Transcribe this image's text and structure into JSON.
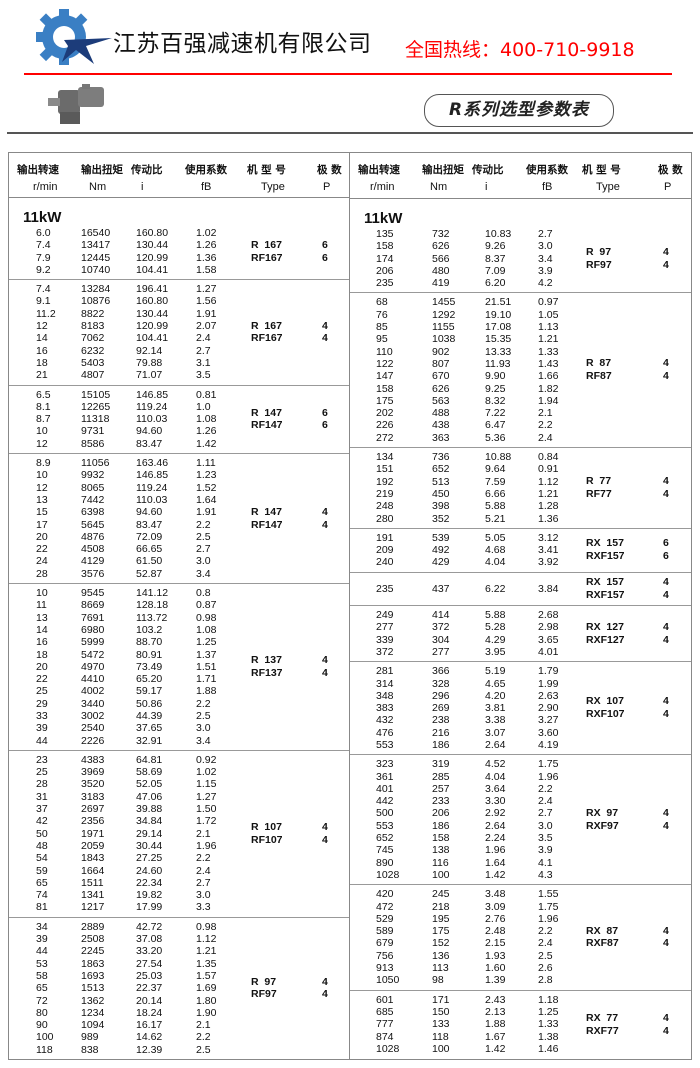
{
  "header": {
    "company": "江苏百强减速机有限公司",
    "hotline": "全国热线：400-710-9918",
    "series_title": "R系列选型参数表",
    "brand_colors": {
      "accent": "#ff0000",
      "logo_blue": "#3a7fc4",
      "logo_navy": "#1c3c7a"
    }
  },
  "columns": {
    "cn": [
      "输出转速",
      "输出扭矩",
      "传动比",
      "使用系数",
      "机 型 号",
      "极 数"
    ],
    "en": [
      "r/min",
      "Nm",
      "i",
      "fB",
      "Type",
      "P"
    ]
  },
  "power": "11kW",
  "left": [
    {
      "rows": [
        [
          "6.0",
          "16540",
          "160.80",
          "1.02"
        ],
        [
          "7.4",
          "13417",
          "130.44",
          "1.26"
        ],
        [
          "7.9",
          "12445",
          "120.99",
          "1.36"
        ],
        [
          "9.2",
          "10740",
          "104.41",
          "1.58"
        ]
      ],
      "type": [
        "R  167",
        "RF167"
      ],
      "pole": [
        "6",
        "6"
      ]
    },
    {
      "rows": [
        [
          "7.4",
          "13284",
          "196.41",
          "1.27"
        ],
        [
          "9.1",
          "10876",
          "160.80",
          "1.56"
        ],
        [
          "11.2",
          "8822",
          "130.44",
          "1.91"
        ],
        [
          "12",
          "8183",
          "120.99",
          "2.07"
        ],
        [
          "14",
          "7062",
          "104.41",
          "2.4"
        ],
        [
          "16",
          "6232",
          "92.14",
          "2.7"
        ],
        [
          "18",
          "5403",
          "79.88",
          "3.1"
        ],
        [
          "21",
          "4807",
          "71.07",
          "3.5"
        ]
      ],
      "type": [
        "R  167",
        "RF167"
      ],
      "pole": [
        "4",
        "4"
      ]
    },
    {
      "rows": [
        [
          "6.5",
          "15105",
          "146.85",
          "0.81"
        ],
        [
          "8.1",
          "12265",
          "119.24",
          "1.0"
        ],
        [
          "8.7",
          "11318",
          "110.03",
          "1.08"
        ],
        [
          "10",
          "9731",
          "94.60",
          "1.26"
        ],
        [
          "12",
          "8586",
          "83.47",
          "1.42"
        ]
      ],
      "type": [
        "R  147",
        "RF147"
      ],
      "pole": [
        "6",
        "6"
      ]
    },
    {
      "rows": [
        [
          "8.9",
          "11056",
          "163.46",
          "1.11"
        ],
        [
          "10",
          "9932",
          "146.85",
          "1.23"
        ],
        [
          "12",
          "8065",
          "119.24",
          "1.52"
        ],
        [
          "13",
          "7442",
          "110.03",
          "1.64"
        ],
        [
          "15",
          "6398",
          "94.60",
          "1.91"
        ],
        [
          "17",
          "5645",
          "83.47",
          "2.2"
        ],
        [
          "20",
          "4876",
          "72.09",
          "2.5"
        ],
        [
          "22",
          "4508",
          "66.65",
          "2.7"
        ],
        [
          "24",
          "4129",
          "61.50",
          "3.0"
        ],
        [
          "28",
          "3576",
          "52.87",
          "3.4"
        ]
      ],
      "type": [
        "R  147",
        "RF147"
      ],
      "pole": [
        "4",
        "4"
      ]
    },
    {
      "rows": [
        [
          "10",
          "9545",
          "141.12",
          "0.8"
        ],
        [
          "11",
          "8669",
          "128.18",
          "0.87"
        ],
        [
          "13",
          "7691",
          "113.72",
          "0.98"
        ],
        [
          "14",
          "6980",
          "103.2",
          "1.08"
        ],
        [
          "16",
          "5999",
          "88.70",
          "1.25"
        ],
        [
          "18",
          "5472",
          "80.91",
          "1.37"
        ],
        [
          "20",
          "4970",
          "73.49",
          "1.51"
        ],
        [
          "22",
          "4410",
          "65.20",
          "1.71"
        ],
        [
          "25",
          "4002",
          "59.17",
          "1.88"
        ],
        [
          "29",
          "3440",
          "50.86",
          "2.2"
        ],
        [
          "33",
          "3002",
          "44.39",
          "2.5"
        ],
        [
          "39",
          "2540",
          "37.65",
          "3.0"
        ],
        [
          "44",
          "2226",
          "32.91",
          "3.4"
        ]
      ],
      "type": [
        "R  137",
        "RF137"
      ],
      "pole": [
        "4",
        "4"
      ]
    },
    {
      "rows": [
        [
          "23",
          "4383",
          "64.81",
          "0.92"
        ],
        [
          "25",
          "3969",
          "58.69",
          "1.02"
        ],
        [
          "28",
          "3520",
          "52.05",
          "1.15"
        ],
        [
          "31",
          "3183",
          "47.06",
          "1.27"
        ],
        [
          "37",
          "2697",
          "39.88",
          "1.50"
        ],
        [
          "42",
          "2356",
          "34.84",
          "1.72"
        ],
        [
          "50",
          "1971",
          "29.14",
          "2.1"
        ],
        [
          "48",
          "2059",
          "30.44",
          "1.96"
        ],
        [
          "54",
          "1843",
          "27.25",
          "2.2"
        ],
        [
          "59",
          "1664",
          "24.60",
          "2.4"
        ],
        [
          "65",
          "1511",
          "22.34",
          "2.7"
        ],
        [
          "74",
          "1341",
          "19.82",
          "3.0"
        ],
        [
          "81",
          "1217",
          "17.99",
          "3.3"
        ]
      ],
      "type": [
        "R  107",
        "RF107"
      ],
      "pole": [
        "4",
        "4"
      ]
    },
    {
      "rows": [
        [
          "34",
          "2889",
          "42.72",
          "0.98"
        ],
        [
          "39",
          "2508",
          "37.08",
          "1.12"
        ],
        [
          "44",
          "2245",
          "33.20",
          "1.21"
        ],
        [
          "53",
          "1863",
          "27.54",
          "1.35"
        ],
        [
          "58",
          "1693",
          "25.03",
          "1.57"
        ],
        [
          "65",
          "1513",
          "22.37",
          "1.69"
        ],
        [
          "72",
          "1362",
          "20.14",
          "1.80"
        ],
        [
          "80",
          "1234",
          "18.24",
          "1.90"
        ],
        [
          "90",
          "1094",
          "16.17",
          "2.1"
        ],
        [
          "100",
          "989",
          "14.62",
          "2.2"
        ],
        [
          "118",
          "838",
          "12.39",
          "2.5"
        ]
      ],
      "type": [
        "R  97",
        "RF97"
      ],
      "pole": [
        "4",
        "4"
      ]
    }
  ],
  "right": [
    {
      "rows": [
        [
          "135",
          "732",
          "10.83",
          "2.7"
        ],
        [
          "158",
          "626",
          "9.26",
          "3.0"
        ],
        [
          "174",
          "566",
          "8.37",
          "3.4"
        ],
        [
          "206",
          "480",
          "7.09",
          "3.9"
        ],
        [
          "235",
          "419",
          "6.20",
          "4.2"
        ]
      ],
      "type": [
        "R  97",
        "RF97"
      ],
      "pole": [
        "4",
        "4"
      ]
    },
    {
      "rows": [
        [
          "68",
          "1455",
          "21.51",
          "0.97"
        ],
        [
          "76",
          "1292",
          "19.10",
          "1.05"
        ],
        [
          "85",
          "1155",
          "17.08",
          "1.13"
        ],
        [
          "95",
          "1038",
          "15.35",
          "1.21"
        ],
        [
          "110",
          "902",
          "13.33",
          "1.33"
        ],
        [
          "122",
          "807",
          "11.93",
          "1.43"
        ],
        [
          "147",
          "670",
          "9.90",
          "1.66"
        ],
        [
          "158",
          "626",
          "9.25",
          "1.82"
        ],
        [
          "175",
          "563",
          "8.32",
          "1.94"
        ],
        [
          "202",
          "488",
          "7.22",
          "2.1"
        ],
        [
          "226",
          "438",
          "6.47",
          "2.2"
        ],
        [
          "272",
          "363",
          "5.36",
          "2.4"
        ]
      ],
      "type": [
        "R  87",
        "RF87"
      ],
      "pole": [
        "4",
        "4"
      ]
    },
    {
      "rows": [
        [
          "134",
          "736",
          "10.88",
          "0.84"
        ],
        [
          "151",
          "652",
          "9.64",
          "0.91"
        ],
        [
          "192",
          "513",
          "7.59",
          "1.12"
        ],
        [
          "219",
          "450",
          "6.66",
          "1.21"
        ],
        [
          "248",
          "398",
          "5.88",
          "1.28"
        ],
        [
          "280",
          "352",
          "5.21",
          "1.36"
        ]
      ],
      "type": [
        "R  77",
        "RF77"
      ],
      "pole": [
        "4",
        "4"
      ]
    },
    {
      "rows": [
        [
          "191",
          "539",
          "5.05",
          "3.12"
        ],
        [
          "209",
          "492",
          "4.68",
          "3.41"
        ],
        [
          "240",
          "429",
          "4.04",
          "3.92"
        ]
      ],
      "type": [
        "RX  157",
        "RXF157"
      ],
      "pole": [
        "6",
        "6"
      ]
    },
    {
      "rows": [
        [
          "235",
          "437",
          "6.22",
          "3.84"
        ]
      ],
      "type": [
        "RX  157",
        "RXF157"
      ],
      "pole": [
        "4",
        "4"
      ],
      "tall": true
    },
    {
      "rows": [
        [
          "249",
          "414",
          "5.88",
          "2.68"
        ],
        [
          "277",
          "372",
          "5.28",
          "2.98"
        ],
        [
          "339",
          "304",
          "4.29",
          "3.65"
        ],
        [
          "372",
          "277",
          "3.95",
          "4.01"
        ]
      ],
      "type": [
        "RX  127",
        "RXF127"
      ],
      "pole": [
        "4",
        "4"
      ]
    },
    {
      "rows": [
        [
          "281",
          "366",
          "5.19",
          "1.79"
        ],
        [
          "314",
          "328",
          "4.65",
          "1.99"
        ],
        [
          "348",
          "296",
          "4.20",
          "2.63"
        ],
        [
          "383",
          "269",
          "3.81",
          "2.90"
        ],
        [
          "432",
          "238",
          "3.38",
          "3.27"
        ],
        [
          "476",
          "216",
          "3.07",
          "3.60"
        ],
        [
          "553",
          "186",
          "2.64",
          "4.19"
        ]
      ],
      "type": [
        "RX  107",
        "RXF107"
      ],
      "pole": [
        "4",
        "4"
      ]
    },
    {
      "rows": [
        [
          "323",
          "319",
          "4.52",
          "1.75"
        ],
        [
          "361",
          "285",
          "4.04",
          "1.96"
        ],
        [
          "401",
          "257",
          "3.64",
          "2.2"
        ],
        [
          "442",
          "233",
          "3.30",
          "2.4"
        ],
        [
          "500",
          "206",
          "2.92",
          "2.7"
        ],
        [
          "553",
          "186",
          "2.64",
          "3.0"
        ],
        [
          "652",
          "158",
          "2.24",
          "3.5"
        ],
        [
          "745",
          "138",
          "1.96",
          "3.9"
        ],
        [
          "890",
          "116",
          "1.64",
          "4.1"
        ],
        [
          "1028",
          "100",
          "1.42",
          "4.3"
        ]
      ],
      "type": [
        "RX  97",
        "RXF97"
      ],
      "pole": [
        "4",
        "4"
      ]
    },
    {
      "rows": [
        [
          "420",
          "245",
          "3.48",
          "1.55"
        ],
        [
          "472",
          "218",
          "3.09",
          "1.75"
        ],
        [
          "529",
          "195",
          "2.76",
          "1.96"
        ],
        [
          "589",
          "175",
          "2.48",
          "2.2"
        ],
        [
          "679",
          "152",
          "2.15",
          "2.4"
        ],
        [
          "756",
          "136",
          "1.93",
          "2.5"
        ],
        [
          "913",
          "113",
          "1.60",
          "2.6"
        ],
        [
          "1050",
          "98",
          "1.39",
          "2.8"
        ]
      ],
      "type": [
        "RX  87",
        "RXF87"
      ],
      "pole": [
        "4",
        "4"
      ]
    },
    {
      "rows": [
        [
          "601",
          "171",
          "2.43",
          "1.18"
        ],
        [
          "685",
          "150",
          "2.13",
          "1.25"
        ],
        [
          "777",
          "133",
          "1.88",
          "1.33"
        ],
        [
          "874",
          "118",
          "1.67",
          "1.38"
        ],
        [
          "1028",
          "100",
          "1.42",
          "1.46"
        ]
      ],
      "type": [
        "RX  77",
        "RXF77"
      ],
      "pole": [
        "4",
        "4"
      ]
    }
  ]
}
